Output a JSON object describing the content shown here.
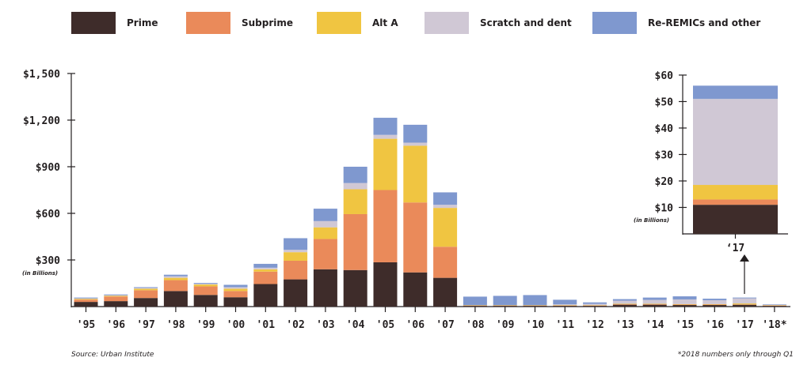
{
  "legend": [
    {
      "name": "Prime",
      "color": "#3e2c2a"
    },
    {
      "name": "Subprime",
      "color": "#ea8a5a"
    },
    {
      "name": "Alt A",
      "color": "#f0c541"
    },
    {
      "name": "Scratch and dent",
      "color": "#d0c8d5"
    },
    {
      "name": "Re-REMICs and other",
      "color": "#7f98cf"
    }
  ],
  "source": "Source: Urban Institute",
  "footnote": "*2018 numbers only through Q1",
  "chart_data": [
    {
      "type": "bar",
      "stacked": true,
      "categories": [
        "'95",
        "'96",
        "'97",
        "'98",
        "'99",
        "'00",
        "'01",
        "'02",
        "'03",
        "'04",
        "'05",
        "'06",
        "'07",
        "'08",
        "'09",
        "'10",
        "'11",
        "'12",
        "'13",
        "'14",
        "'15",
        "'16",
        "'17",
        "'18*"
      ],
      "series": [
        {
          "name": "Prime",
          "color": "#3e2c2a",
          "values": [
            30,
            35,
            55,
            100,
            75,
            60,
            145,
            175,
            240,
            235,
            285,
            220,
            185,
            5,
            5,
            5,
            5,
            5,
            12,
            12,
            10,
            10,
            12,
            5
          ]
        },
        {
          "name": "Subprime",
          "color": "#ea8a5a",
          "values": [
            15,
            30,
            50,
            70,
            55,
            40,
            80,
            120,
            195,
            360,
            465,
            450,
            200,
            2,
            2,
            2,
            2,
            2,
            3,
            3,
            3,
            3,
            2,
            2
          ]
        },
        {
          "name": "Alt A",
          "color": "#f0c541",
          "values": [
            5,
            5,
            10,
            15,
            12,
            15,
            15,
            55,
            75,
            160,
            330,
            365,
            250,
            2,
            2,
            2,
            2,
            2,
            3,
            3,
            3,
            3,
            6,
            2
          ]
        },
        {
          "name": "Scratch and dent",
          "color": "#d0c8d5",
          "values": [
            3,
            3,
            5,
            10,
            5,
            10,
            10,
            15,
            40,
            40,
            25,
            20,
            20,
            0,
            0,
            0,
            5,
            8,
            20,
            25,
            30,
            25,
            33,
            3
          ]
        },
        {
          "name": "Re-REMICs and other",
          "color": "#7f98cf",
          "values": [
            5,
            5,
            5,
            10,
            5,
            15,
            25,
            75,
            80,
            105,
            110,
            115,
            80,
            55,
            60,
            65,
            30,
            10,
            10,
            15,
            20,
            10,
            5,
            3
          ]
        }
      ],
      "yticks": [
        "$300",
        "$600",
        "$900",
        "$1,200",
        "$1,500"
      ],
      "ylim": [
        0,
        1500
      ],
      "ylabel_note": "(in Billions)",
      "grid": false
    },
    {
      "type": "bar",
      "stacked": true,
      "categories": [
        "‘17"
      ],
      "series": [
        {
          "name": "Prime",
          "color": "#3e2c2a",
          "values": [
            11
          ]
        },
        {
          "name": "Subprime",
          "color": "#ea8a5a",
          "values": [
            2
          ]
        },
        {
          "name": "Alt A",
          "color": "#f0c541",
          "values": [
            5.5
          ]
        },
        {
          "name": "Scratch and dent",
          "color": "#d0c8d5",
          "values": [
            32.5
          ]
        },
        {
          "name": "Re-REMICs and other",
          "color": "#7f98cf",
          "values": [
            5
          ]
        }
      ],
      "yticks": [
        "$10",
        "$20",
        "$30",
        "$40",
        "$50",
        "$60"
      ],
      "ylim": [
        0,
        60
      ],
      "ylabel_note": "(in Billions)",
      "grid": false
    }
  ]
}
